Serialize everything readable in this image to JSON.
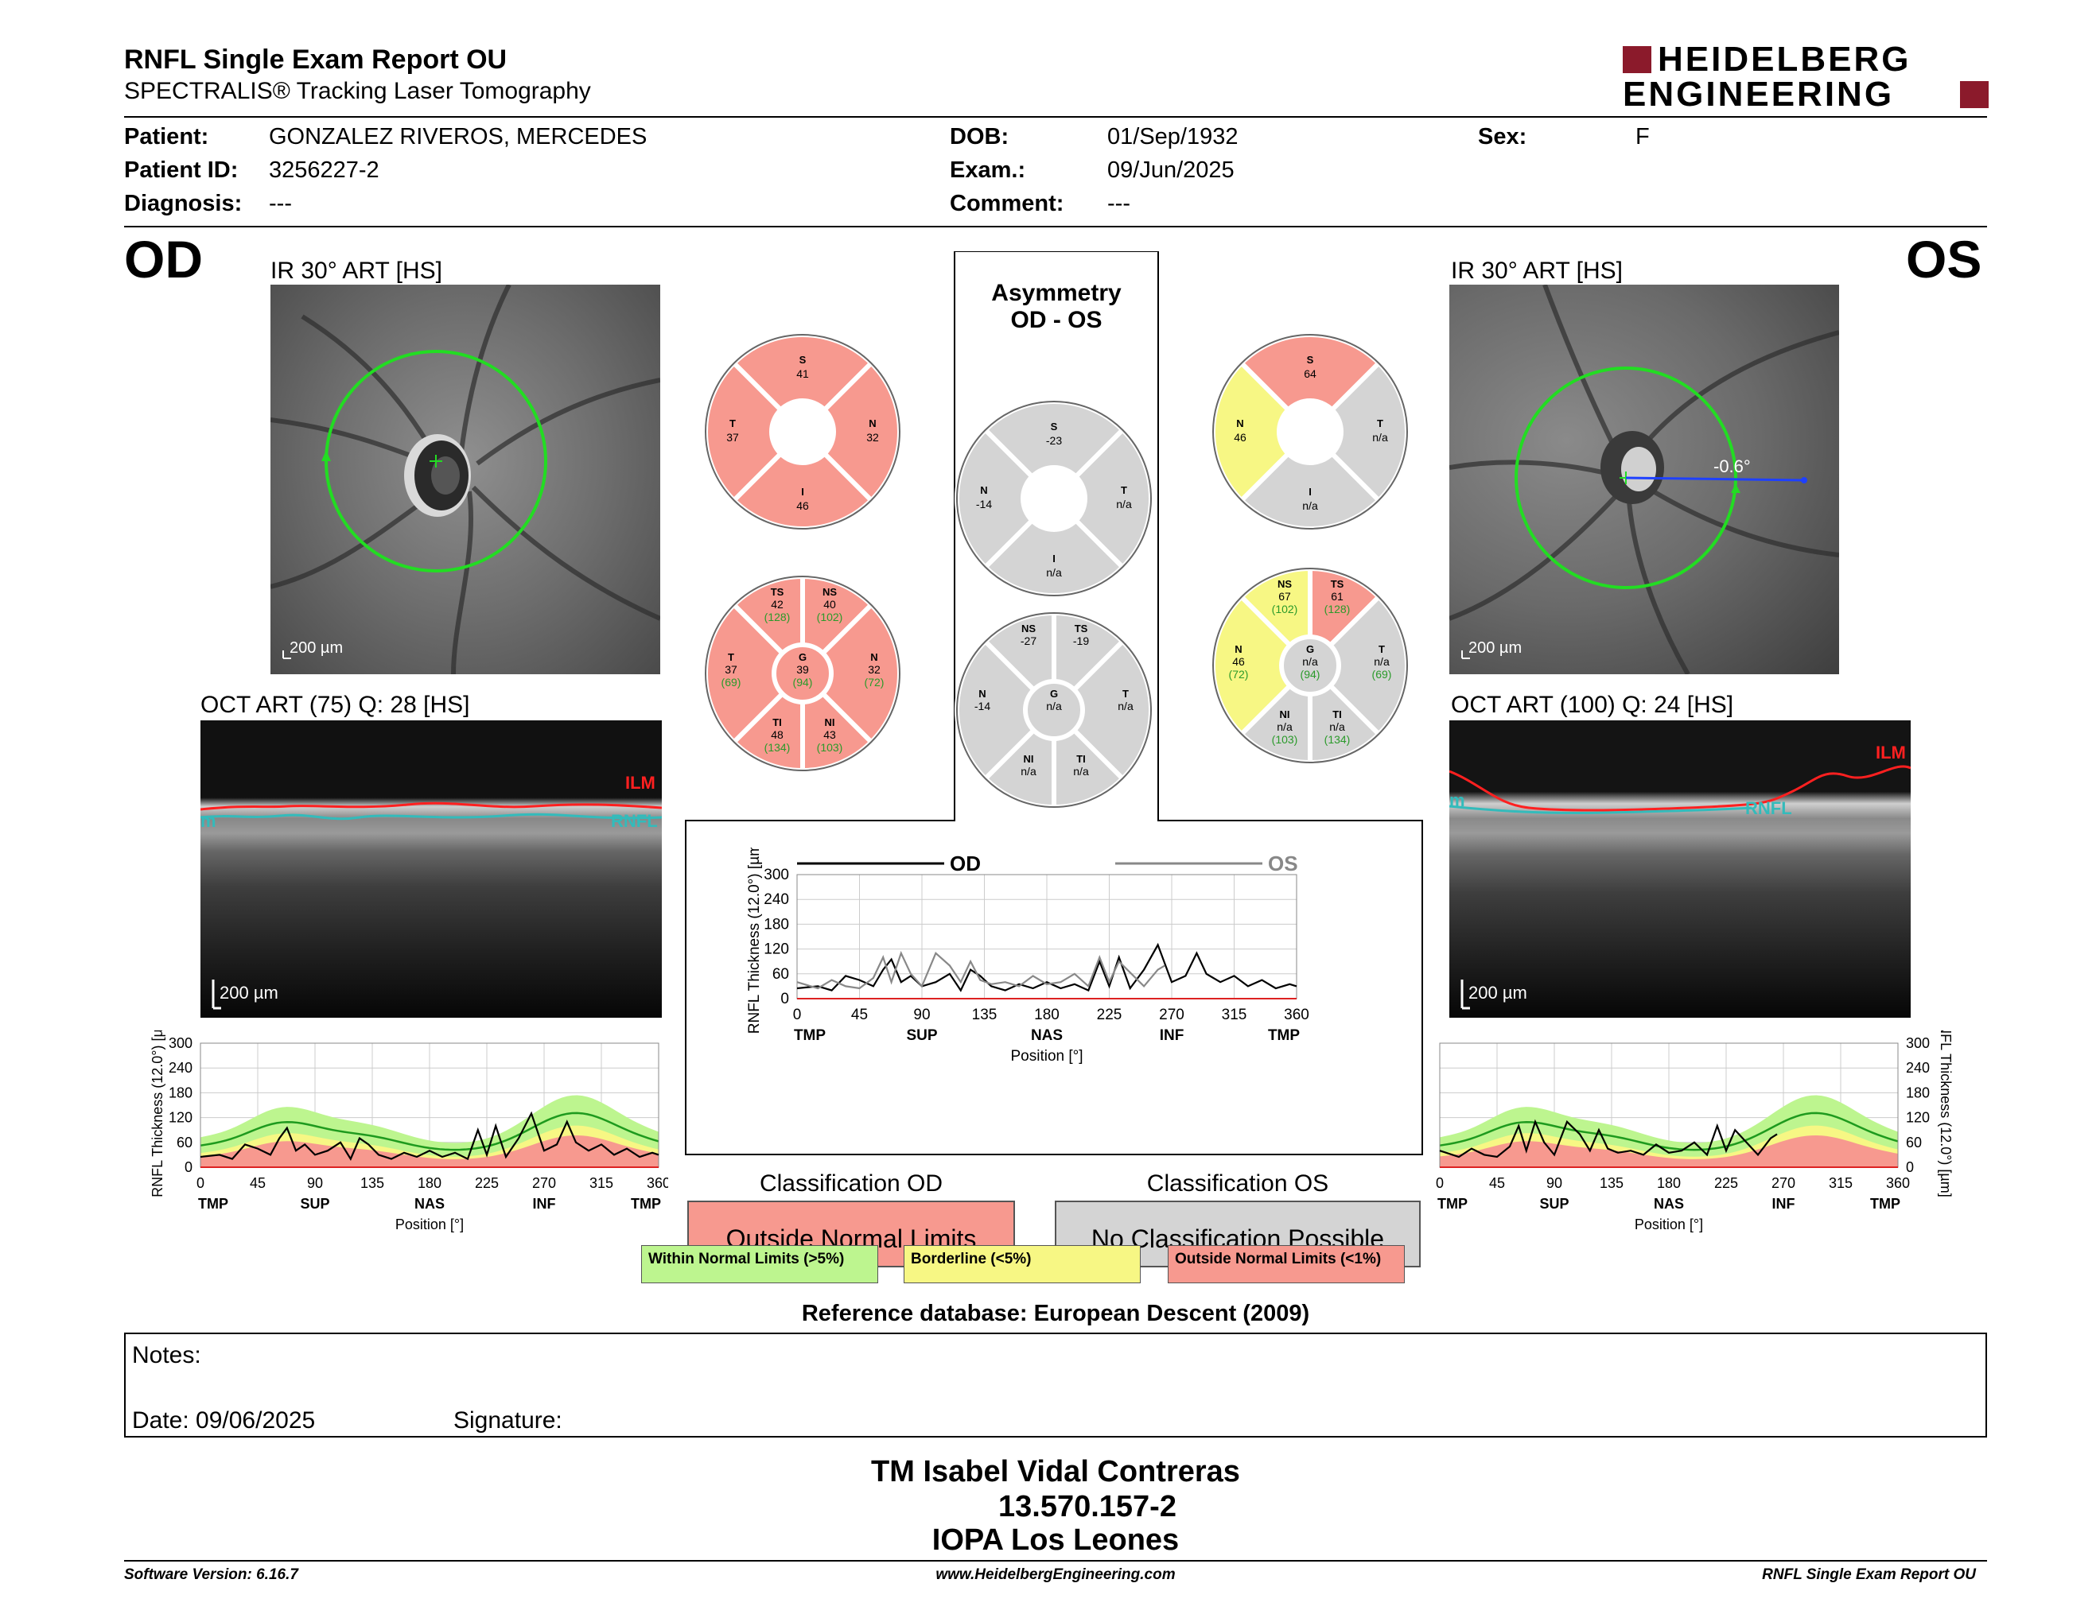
{
  "header": {
    "title": "RNFL Single Exam Report OU",
    "subtitle": "SPECTRALIS® Tracking Laser Tomography",
    "logo_line1": "HEIDELBERG",
    "logo_line2": "ENGINEERING"
  },
  "patient": {
    "patient_label": "Patient:",
    "patient_value": "GONZALEZ RIVEROS, MERCEDES",
    "id_label": "Patient ID:",
    "id_value": "3256227-2",
    "diagnosis_label": "Diagnosis:",
    "diagnosis_value": "---",
    "dob_label": "DOB:",
    "dob_value": "01/Sep/1932",
    "exam_label": "Exam.:",
    "exam_value": "09/Jun/2025",
    "comment_label": "Comment:",
    "comment_value": "---",
    "sex_label": "Sex:",
    "sex_value": "F"
  },
  "od": {
    "eye": "OD",
    "ir_label": "IR 30° ART [HS]",
    "oct_label": "OCT ART (75) Q: 28 [HS]",
    "scale": "200 µm",
    "ilm": "ILM",
    "rnfl": "RNFL",
    "rnfl_left": "m"
  },
  "os": {
    "eye": "OS",
    "ir_label": "IR 30° ART [HS]",
    "oct_label": "OCT ART (100) Q: 24 [HS]",
    "scale": "200 µm",
    "angle": "-0.6°",
    "ilm": "ILM",
    "rnfl": "RNFL",
    "rnfl_left": "m"
  },
  "asymmetry": {
    "title_line1": "Asymmetry",
    "title_line2": "OD - OS"
  },
  "pies": {
    "od4": [
      {
        "l": "S",
        "v": "41"
      },
      {
        "l": "N",
        "v": "32"
      },
      {
        "l": "I",
        "v": "46"
      },
      {
        "l": "T",
        "v": "37"
      }
    ],
    "asym4": [
      {
        "l": "S",
        "v": "-23"
      },
      {
        "l": "T",
        "v": "n/a"
      },
      {
        "l": "I",
        "v": "n/a"
      },
      {
        "l": "N",
        "v": "-14"
      }
    ],
    "os4": [
      {
        "l": "S",
        "v": "64"
      },
      {
        "l": "T",
        "v": "n/a"
      },
      {
        "l": "I",
        "v": "n/a"
      },
      {
        "l": "N",
        "v": "46"
      }
    ],
    "od6": [
      {
        "l": "TS",
        "v": "42",
        "r": "(128)"
      },
      {
        "l": "NS",
        "v": "40",
        "r": "(102)"
      },
      {
        "l": "N",
        "v": "32",
        "r": "(72)"
      },
      {
        "l": "NI",
        "v": "43",
        "r": "(103)"
      },
      {
        "l": "TI",
        "v": "48",
        "r": "(134)"
      },
      {
        "l": "T",
        "v": "37",
        "r": "(69)"
      },
      {
        "l": "G",
        "v": "39",
        "r": "(94)"
      }
    ],
    "asym6": [
      {
        "l": "NS",
        "v": "-27"
      },
      {
        "l": "TS",
        "v": "-19"
      },
      {
        "l": "T",
        "v": "n/a"
      },
      {
        "l": "TI",
        "v": "n/a"
      },
      {
        "l": "NI",
        "v": "n/a"
      },
      {
        "l": "N",
        "v": "-14"
      },
      {
        "l": "G",
        "v": "n/a"
      }
    ],
    "os6": [
      {
        "l": "NS",
        "v": "67",
        "r": "(102)"
      },
      {
        "l": "TS",
        "v": "61",
        "r": "(128)"
      },
      {
        "l": "T",
        "v": "n/a",
        "r": "(69)"
      },
      {
        "l": "TI",
        "v": "n/a",
        "r": "(134)"
      },
      {
        "l": "NI",
        "v": "n/a",
        "r": "(103)"
      },
      {
        "l": "N",
        "v": "46",
        "r": "(72)"
      },
      {
        "l": "G",
        "v": "n/a",
        "r": "(94)"
      }
    ]
  },
  "colors": {
    "outside": "#f7998f",
    "borderline": "#f7f784",
    "within": "#bdf58f",
    "na": "#d4d4d4",
    "od_line": "#000000",
    "os_line": "#888888",
    "green_line": "#1e9a1e"
  },
  "chart_data": [
    {
      "type": "line",
      "id": "od",
      "ylabel": "RNFL Thickness (12.0°) [µm]",
      "xlabel": "Position [°]",
      "x_ticks": [
        0,
        45,
        90,
        135,
        180,
        225,
        270,
        315,
        360
      ],
      "y_ticks": [
        0,
        60,
        120,
        180,
        240,
        300
      ],
      "xlim": [
        0,
        360
      ],
      "ylim": [
        0,
        300
      ],
      "sector_labels": [
        "TMP",
        "SUP",
        "NAS",
        "INF",
        "TMP"
      ],
      "series": [
        {
          "x": [
            0,
            15,
            25,
            35,
            45,
            55,
            62,
            68,
            75,
            82,
            90,
            100,
            110,
            118,
            125,
            132,
            140,
            150,
            160,
            170,
            180,
            190,
            200,
            210,
            218,
            225,
            232,
            240,
            250,
            260,
            270,
            280,
            288,
            295,
            305,
            315,
            325,
            335,
            345,
            355,
            360
          ],
          "values": [
            25,
            30,
            20,
            55,
            45,
            30,
            70,
            95,
            40,
            55,
            30,
            40,
            60,
            20,
            70,
            55,
            30,
            20,
            35,
            25,
            40,
            25,
            35,
            20,
            90,
            30,
            100,
            25,
            70,
            130,
            40,
            55,
            110,
            60,
            40,
            55,
            30,
            45,
            25,
            35,
            30
          ]
        }
      ]
    },
    {
      "type": "line",
      "id": "ou",
      "ylabel": "RNFL Thickness (12.0°) [µm]",
      "xlabel": "Position [°]",
      "x_ticks": [
        0,
        45,
        90,
        135,
        180,
        225,
        270,
        315,
        360
      ],
      "y_ticks": [
        0,
        60,
        120,
        180,
        240,
        300
      ],
      "xlim": [
        0,
        360
      ],
      "ylim": [
        0,
        300
      ],
      "sector_labels": [
        "TMP",
        "SUP",
        "NAS",
        "INF",
        "TMP"
      ],
      "legend": [
        "OD",
        "OS"
      ],
      "series": [
        {
          "name": "OD",
          "x": [
            0,
            15,
            25,
            35,
            45,
            55,
            62,
            68,
            75,
            82,
            90,
            100,
            110,
            118,
            125,
            132,
            140,
            150,
            160,
            170,
            180,
            190,
            200,
            210,
            218,
            225,
            232,
            240,
            250,
            260,
            270,
            280,
            288,
            295,
            305,
            315,
            325,
            335,
            345,
            355,
            360
          ],
          "values": [
            25,
            30,
            20,
            55,
            45,
            30,
            70,
            95,
            40,
            55,
            30,
            40,
            60,
            20,
            70,
            55,
            30,
            20,
            35,
            25,
            40,
            25,
            35,
            20,
            90,
            30,
            100,
            25,
            70,
            130,
            40,
            55,
            110,
            60,
            40,
            55,
            30,
            45,
            25,
            35,
            30
          ]
        },
        {
          "name": "OS",
          "x": [
            0,
            15,
            25,
            35,
            45,
            55,
            62,
            68,
            75,
            82,
            90,
            100,
            110,
            118,
            125,
            132,
            140,
            150,
            160,
            170,
            180,
            190,
            200,
            210,
            218,
            225,
            232,
            250,
            260,
            265
          ],
          "values": [
            40,
            25,
            45,
            30,
            25,
            50,
            100,
            40,
            110,
            60,
            30,
            110,
            80,
            40,
            90,
            45,
            35,
            40,
            30,
            55,
            35,
            40,
            60,
            30,
            100,
            40,
            90,
            30,
            70,
            80
          ]
        }
      ]
    },
    {
      "type": "line",
      "id": "os",
      "ylabel": "RNFL Thickness (12.0°) [µm]",
      "xlabel": "Position [°]",
      "x_ticks": [
        0,
        45,
        90,
        135,
        180,
        225,
        270,
        315,
        360
      ],
      "y_ticks": [
        0,
        60,
        120,
        180,
        240,
        300
      ],
      "xlim": [
        0,
        360
      ],
      "ylim": [
        0,
        300
      ],
      "sector_labels": [
        "TMP",
        "SUP",
        "NAS",
        "INF",
        "TMP"
      ],
      "series": [
        {
          "x": [
            0,
            15,
            25,
            35,
            45,
            55,
            62,
            68,
            75,
            82,
            90,
            100,
            110,
            118,
            125,
            132,
            140,
            150,
            160,
            170,
            180,
            190,
            200,
            210,
            218,
            225,
            232,
            250,
            260,
            265
          ],
          "values": [
            40,
            25,
            45,
            30,
            25,
            50,
            100,
            40,
            110,
            60,
            30,
            110,
            80,
            40,
            90,
            45,
            35,
            40,
            30,
            55,
            35,
            40,
            60,
            30,
            100,
            40,
            90,
            30,
            70,
            80
          ]
        }
      ]
    }
  ],
  "classification": {
    "od_title": "Classification OD",
    "od_value": "Outside Normal Limits",
    "os_title": "Classification OS",
    "os_value": "No Classification Possible",
    "legend_within": "Within Normal Limits (>5%)",
    "legend_border": "Borderline (<5%)",
    "legend_outside": "Outside Normal Limits (<1%)"
  },
  "reference": "Reference database: European Descent (2009)",
  "notes": {
    "label": "Notes:",
    "date": "Date: 09/06/2025",
    "signature": "Signature:"
  },
  "signer": {
    "name": "TM Isabel Vidal Contreras",
    "rut": "13.570.157-2",
    "place": "IOPA Los Leones"
  },
  "footer": {
    "version": "Software Version: 6.16.7",
    "url": "www.HeidelbergEngineering.com",
    "report": "RNFL Single Exam Report OU"
  }
}
